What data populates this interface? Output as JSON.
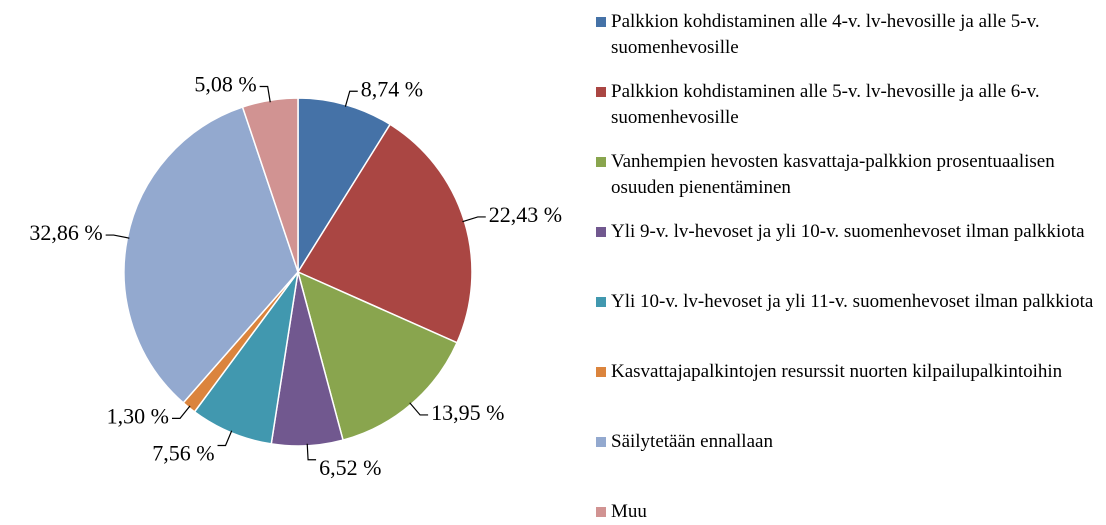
{
  "chart_data": {
    "type": "pie",
    "categories": [
      "Palkkion kohdistaminen alle 4-v. lv-hevosille ja alle 5-v. suomenhevosille",
      "Palkkion kohdistaminen alle 5-v. lv-hevosille ja alle 6-v. suomenhevosille",
      "Vanhempien hevosten kasvattaja-palkkion prosentuaalisen osuuden pienentäminen",
      "Yli 9-v. lv-hevoset ja yli 10-v. suomenhevoset ilman palkkiota",
      "Yli 10-v. lv-hevoset ja yli 11-v. suomenhevoset ilman palkkiota",
      "Kasvattajapalkintojen resurssit nuorten kilpailupalkintoihin",
      "Säilytetään ennallaan",
      "Muu"
    ],
    "values": [
      8.74,
      22.43,
      13.95,
      6.52,
      7.56,
      1.3,
      32.86,
      5.08
    ],
    "value_labels": [
      "8,74 %",
      "22,43 %",
      "13,95 %",
      "6,52 %",
      "7,56 %",
      "1,30 %",
      "32,86 %",
      "5,08 %"
    ],
    "colors": [
      "#4572a7",
      "#aa4643",
      "#89a54e",
      "#71588f",
      "#4198af",
      "#db843d",
      "#93a9cf",
      "#d19392"
    ],
    "legend": "right"
  }
}
